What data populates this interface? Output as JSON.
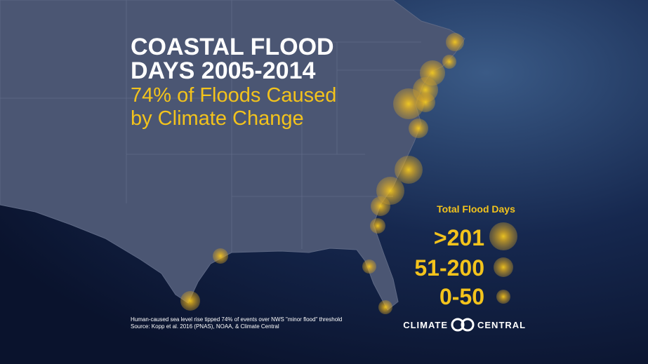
{
  "title": {
    "lines": [
      "COASTAL FLOOD",
      "DAYS 2005-2014"
    ]
  },
  "subtitle": {
    "lines": [
      "74% of Floods Caused",
      "by Climate Change"
    ]
  },
  "legend": {
    "title": "Total Flood Days",
    "items": [
      ">201",
      "51-200",
      "0-50"
    ]
  },
  "footnote": {
    "lines": [
      "Human-caused sea level rise tipped 74% of events over NWS \"minor flood\" threshold",
      "Source: Kopp et al. 2016 (PNAS), NOAA, & Climate Central"
    ]
  },
  "logo": {
    "left": "CLIMATE",
    "right": "CENTRAL"
  }
}
